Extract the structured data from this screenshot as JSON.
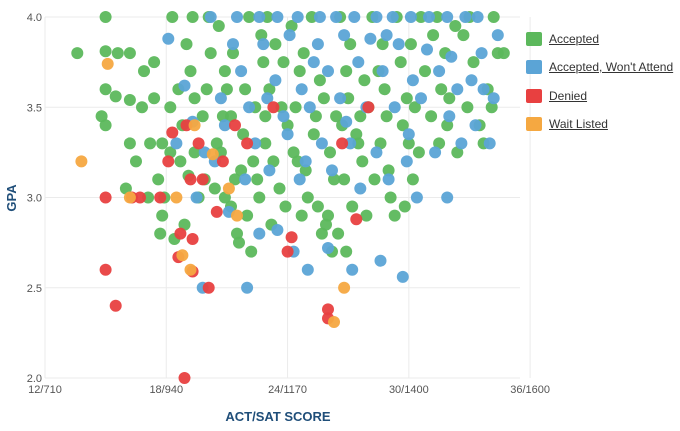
{
  "chart_data": {
    "type": "scatter",
    "title": "",
    "xlabel": "ACT/SAT SCORE",
    "ylabel": "GPA",
    "x_tick_labels": [
      "12/710",
      "18/940",
      "24/1170",
      "30/1400",
      "36/1600"
    ],
    "x_ticks": [
      12,
      18,
      24,
      30,
      36
    ],
    "xlim": [
      12,
      35.5
    ],
    "y_tick_labels": [
      "2.0",
      "2.5",
      "3.0",
      "3.5",
      "4.0"
    ],
    "y_ticks": [
      2.0,
      2.5,
      3.0,
      3.5,
      4.0
    ],
    "ylim": [
      2.0,
      4.0
    ],
    "grid": true,
    "legend_position": "right",
    "series": [
      {
        "name": "Accepted",
        "color": "#5cb85c",
        "points": [
          [
            13.6,
            3.8
          ],
          [
            15,
            4.0
          ],
          [
            15,
            3.81
          ],
          [
            15.6,
            3.8
          ],
          [
            16.2,
            3.8
          ],
          [
            15,
            3.6
          ],
          [
            15.5,
            3.56
          ],
          [
            16.2,
            3.54
          ],
          [
            15,
            3.4
          ],
          [
            16.2,
            3.3
          ],
          [
            16.9,
            3.7
          ],
          [
            16.8,
            3.5
          ],
          [
            17.4,
            3.75
          ],
          [
            17.4,
            3.55
          ],
          [
            17.2,
            3.3
          ],
          [
            17.8,
            3.3
          ],
          [
            18.2,
            3.5
          ],
          [
            17.6,
            3.1
          ],
          [
            18.2,
            3.25
          ],
          [
            18.6,
            3.6
          ],
          [
            18.8,
            3.4
          ],
          [
            19.2,
            3.7
          ],
          [
            19.4,
            3.55
          ],
          [
            19.1,
            3.12
          ],
          [
            19.4,
            3.25
          ],
          [
            19.6,
            3.0
          ],
          [
            17.8,
            2.9
          ],
          [
            17.7,
            2.8
          ],
          [
            18.4,
            2.77
          ],
          [
            18.9,
            2.85
          ],
          [
            17.1,
            3.0
          ],
          [
            16.5,
            3.2
          ],
          [
            18.3,
            4.0
          ],
          [
            19.3,
            4.0
          ],
          [
            20.1,
            4.0
          ],
          [
            20.6,
            3.95
          ],
          [
            20.9,
            3.7
          ],
          [
            21.2,
            3.45
          ],
          [
            20.7,
            3.25
          ],
          [
            20.4,
            3.05
          ],
          [
            21.4,
            3.1
          ],
          [
            21.2,
            2.95
          ],
          [
            21.5,
            2.8
          ],
          [
            22.0,
            2.9
          ],
          [
            21.6,
            2.75
          ],
          [
            22.2,
            2.7
          ],
          [
            22.5,
            3.1
          ],
          [
            22.9,
            3.3
          ],
          [
            23.1,
            3.6
          ],
          [
            23.4,
            3.85
          ],
          [
            24.0,
            3.4
          ],
          [
            24.5,
            3.2
          ],
          [
            25.0,
            3.0
          ],
          [
            25.5,
            2.95
          ],
          [
            25.7,
            2.8
          ],
          [
            26.2,
            2.7
          ],
          [
            26.0,
            2.9
          ],
          [
            26.8,
            3.1
          ],
          [
            27.2,
            2.95
          ],
          [
            27.5,
            3.3
          ],
          [
            28.0,
            3.5
          ],
          [
            28.5,
            3.7
          ],
          [
            29.1,
            3.0
          ],
          [
            29.3,
            2.9
          ],
          [
            29.8,
            2.95
          ],
          [
            30.2,
            3.1
          ],
          [
            30.0,
            3.3
          ],
          [
            30.5,
            3.25
          ],
          [
            31.1,
            3.45
          ],
          [
            31.6,
            3.6
          ],
          [
            31.8,
            3.8
          ],
          [
            32.3,
            3.95
          ],
          [
            33.0,
            4.0
          ],
          [
            33.5,
            3.4
          ],
          [
            33.7,
            3.3
          ],
          [
            34.2,
            4.0
          ],
          [
            34.4,
            3.8
          ],
          [
            32.4,
            3.25
          ],
          [
            31.5,
            3.3
          ],
          [
            30.8,
            3.7
          ],
          [
            29.6,
            3.75
          ],
          [
            28.7,
            3.85
          ],
          [
            27.8,
            3.65
          ],
          [
            27.0,
            3.55
          ],
          [
            26.4,
            3.45
          ],
          [
            25.6,
            3.65
          ],
          [
            24.8,
            3.8
          ],
          [
            24.2,
            3.95
          ],
          [
            23.7,
            3.5
          ],
          [
            22.8,
            3.75
          ],
          [
            22.4,
            3.5
          ],
          [
            21.8,
            3.35
          ],
          [
            21.0,
            3.6
          ],
          [
            20.2,
            3.8
          ],
          [
            19.8,
            3.45
          ],
          [
            20.8,
            3.45
          ],
          [
            22.1,
            4.0
          ],
          [
            23.0,
            4.0
          ],
          [
            25.2,
            4.0
          ],
          [
            26.6,
            4.0
          ],
          [
            28.2,
            4.0
          ],
          [
            29.4,
            4.0
          ],
          [
            30.6,
            4.0
          ],
          [
            31.4,
            4.0
          ],
          [
            32.7,
            3.9
          ],
          [
            33.2,
            3.75
          ],
          [
            32.0,
            3.55
          ],
          [
            30.3,
            3.5
          ],
          [
            28.9,
            3.45
          ],
          [
            27.4,
            3.35
          ],
          [
            26.1,
            3.25
          ],
          [
            25.3,
            3.35
          ],
          [
            24.4,
            3.5
          ],
          [
            23.3,
            3.2
          ],
          [
            22.6,
            3.0
          ],
          [
            23.6,
            3.05
          ],
          [
            24.9,
            3.15
          ],
          [
            26.3,
            3.1
          ],
          [
            27.7,
            3.2
          ],
          [
            28.3,
            3.1
          ],
          [
            28.6,
            3.3
          ],
          [
            29.0,
            3.15
          ],
          [
            27.9,
            2.9
          ],
          [
            26.5,
            2.8
          ],
          [
            25.9,
            2.85
          ],
          [
            24.7,
            2.9
          ],
          [
            23.9,
            2.95
          ],
          [
            22.3,
            3.2
          ],
          [
            21.7,
            3.15
          ],
          [
            20.5,
            3.3
          ],
          [
            21.3,
            3.8
          ],
          [
            22.7,
            3.9
          ],
          [
            24.6,
            3.7
          ],
          [
            25.8,
            3.55
          ],
          [
            27.1,
            3.85
          ],
          [
            28.8,
            3.6
          ],
          [
            30.1,
            3.85
          ],
          [
            31.2,
            3.9
          ],
          [
            32.9,
            3.5
          ],
          [
            33.9,
            3.6
          ],
          [
            34.1,
            3.5
          ],
          [
            19.0,
            3.85
          ],
          [
            20.0,
            3.6
          ],
          [
            21.9,
            3.6
          ],
          [
            23.8,
            3.75
          ],
          [
            26.9,
            3.7
          ],
          [
            29.9,
            3.55
          ],
          [
            22.9,
            3.45
          ],
          [
            25.4,
            3.45
          ],
          [
            27.6,
            3.45
          ],
          [
            29.7,
            3.4
          ],
          [
            31.9,
            3.4
          ],
          [
            24.3,
            3.25
          ],
          [
            26.7,
            3.4
          ],
          [
            18.7,
            3.2
          ],
          [
            19.9,
            3.1
          ],
          [
            20.9,
            3.0
          ],
          [
            23.2,
            2.85
          ],
          [
            26.9,
            2.7
          ],
          [
            16.0,
            3.05
          ],
          [
            14.8,
            3.45
          ],
          [
            17.9,
            3.0
          ],
          [
            34.7,
            3.8
          ]
        ]
      },
      {
        "name": "Accepted, Won't Attend",
        "color": "#5ba4d6",
        "points": [
          [
            20.2,
            4.0
          ],
          [
            21.5,
            4.0
          ],
          [
            22.6,
            4.0
          ],
          [
            23.5,
            4.0
          ],
          [
            24.5,
            4.0
          ],
          [
            25.6,
            4.0
          ],
          [
            26.4,
            4.0
          ],
          [
            27.3,
            4.0
          ],
          [
            28.4,
            4.0
          ],
          [
            29.2,
            4.0
          ],
          [
            30.1,
            4.0
          ],
          [
            31.0,
            4.0
          ],
          [
            31.9,
            4.0
          ],
          [
            32.8,
            4.0
          ],
          [
            33.4,
            4.0
          ],
          [
            22.8,
            3.85
          ],
          [
            24.1,
            3.9
          ],
          [
            25.5,
            3.85
          ],
          [
            26.8,
            3.9
          ],
          [
            28.1,
            3.88
          ],
          [
            29.5,
            3.85
          ],
          [
            30.9,
            3.82
          ],
          [
            32.1,
            3.78
          ],
          [
            33.6,
            3.8
          ],
          [
            34.4,
            3.9
          ],
          [
            21.7,
            3.7
          ],
          [
            23.4,
            3.65
          ],
          [
            24.7,
            3.6
          ],
          [
            26.0,
            3.7
          ],
          [
            27.5,
            3.75
          ],
          [
            28.7,
            3.7
          ],
          [
            30.2,
            3.65
          ],
          [
            31.5,
            3.7
          ],
          [
            33.1,
            3.65
          ],
          [
            34.2,
            3.55
          ],
          [
            22.1,
            3.5
          ],
          [
            23.8,
            3.45
          ],
          [
            25.1,
            3.5
          ],
          [
            26.6,
            3.55
          ],
          [
            27.9,
            3.5
          ],
          [
            29.3,
            3.5
          ],
          [
            30.6,
            3.55
          ],
          [
            32.0,
            3.45
          ],
          [
            33.3,
            3.4
          ],
          [
            20.9,
            3.4
          ],
          [
            22.4,
            3.3
          ],
          [
            24.0,
            3.35
          ],
          [
            25.7,
            3.3
          ],
          [
            27.1,
            3.3
          ],
          [
            28.4,
            3.25
          ],
          [
            29.9,
            3.2
          ],
          [
            31.3,
            3.25
          ],
          [
            32.6,
            3.3
          ],
          [
            34.0,
            3.3
          ],
          [
            20.4,
            3.2
          ],
          [
            21.9,
            3.1
          ],
          [
            23.1,
            3.15
          ],
          [
            24.6,
            3.1
          ],
          [
            26.2,
            3.15
          ],
          [
            27.6,
            3.05
          ],
          [
            29.0,
            3.1
          ],
          [
            30.4,
            3.0
          ],
          [
            31.9,
            3.0
          ],
          [
            19.5,
            3.0
          ],
          [
            21.1,
            2.92
          ],
          [
            22.6,
            2.8
          ],
          [
            23.5,
            2.82
          ],
          [
            24.3,
            2.7
          ],
          [
            26.0,
            2.72
          ],
          [
            27.2,
            2.6
          ],
          [
            28.6,
            2.65
          ],
          [
            29.7,
            2.56
          ],
          [
            25.0,
            2.6
          ],
          [
            22.0,
            2.5
          ],
          [
            19.8,
            2.5
          ],
          [
            18.1,
            3.88
          ],
          [
            18.9,
            3.62
          ],
          [
            19.3,
            3.42
          ],
          [
            18.5,
            3.3
          ],
          [
            19.9,
            3.25
          ],
          [
            20.7,
            3.55
          ],
          [
            21.3,
            3.85
          ],
          [
            25.3,
            3.75
          ],
          [
            28.9,
            3.9
          ],
          [
            32.4,
            3.6
          ],
          [
            33.7,
            3.6
          ],
          [
            30.0,
            3.35
          ],
          [
            26.9,
            3.42
          ],
          [
            24.9,
            3.2
          ],
          [
            23.0,
            3.55
          ]
        ]
      },
      {
        "name": "Denied",
        "color": "#e84040",
        "points": [
          [
            15.0,
            3.0
          ],
          [
            16.3,
            3.0
          ],
          [
            16.7,
            3.0
          ],
          [
            15.0,
            2.6
          ],
          [
            15.5,
            2.4
          ],
          [
            17.7,
            3.0
          ],
          [
            18.1,
            3.2
          ],
          [
            18.3,
            3.36
          ],
          [
            18.7,
            2.8
          ],
          [
            18.6,
            2.67
          ],
          [
            19.0,
            3.4
          ],
          [
            19.3,
            2.77
          ],
          [
            19.2,
            3.1
          ],
          [
            19.6,
            3.3
          ],
          [
            19.8,
            3.1
          ],
          [
            20.1,
            2.5
          ],
          [
            20.5,
            2.92
          ],
          [
            19.3,
            2.59
          ],
          [
            18.9,
            2.0
          ],
          [
            20.8,
            3.2
          ],
          [
            21.4,
            3.4
          ],
          [
            22.0,
            3.3
          ],
          [
            23.3,
            3.5
          ],
          [
            24.0,
            2.7
          ],
          [
            24.2,
            2.78
          ],
          [
            26.0,
            2.38
          ],
          [
            26.0,
            2.33
          ],
          [
            26.7,
            3.3
          ],
          [
            27.4,
            2.88
          ],
          [
            28.0,
            3.5
          ]
        ]
      },
      {
        "name": "Wait Listed",
        "color": "#f5a841",
        "points": [
          [
            13.8,
            3.2
          ],
          [
            15.1,
            3.74
          ],
          [
            16.2,
            3.0
          ],
          [
            18.5,
            3.0
          ],
          [
            18.8,
            2.68
          ],
          [
            19.2,
            2.6
          ],
          [
            19.4,
            3.4
          ],
          [
            20.3,
            3.24
          ],
          [
            21.1,
            3.05
          ],
          [
            21.5,
            2.9
          ],
          [
            26.3,
            2.31
          ],
          [
            26.8,
            2.5
          ]
        ]
      }
    ]
  }
}
